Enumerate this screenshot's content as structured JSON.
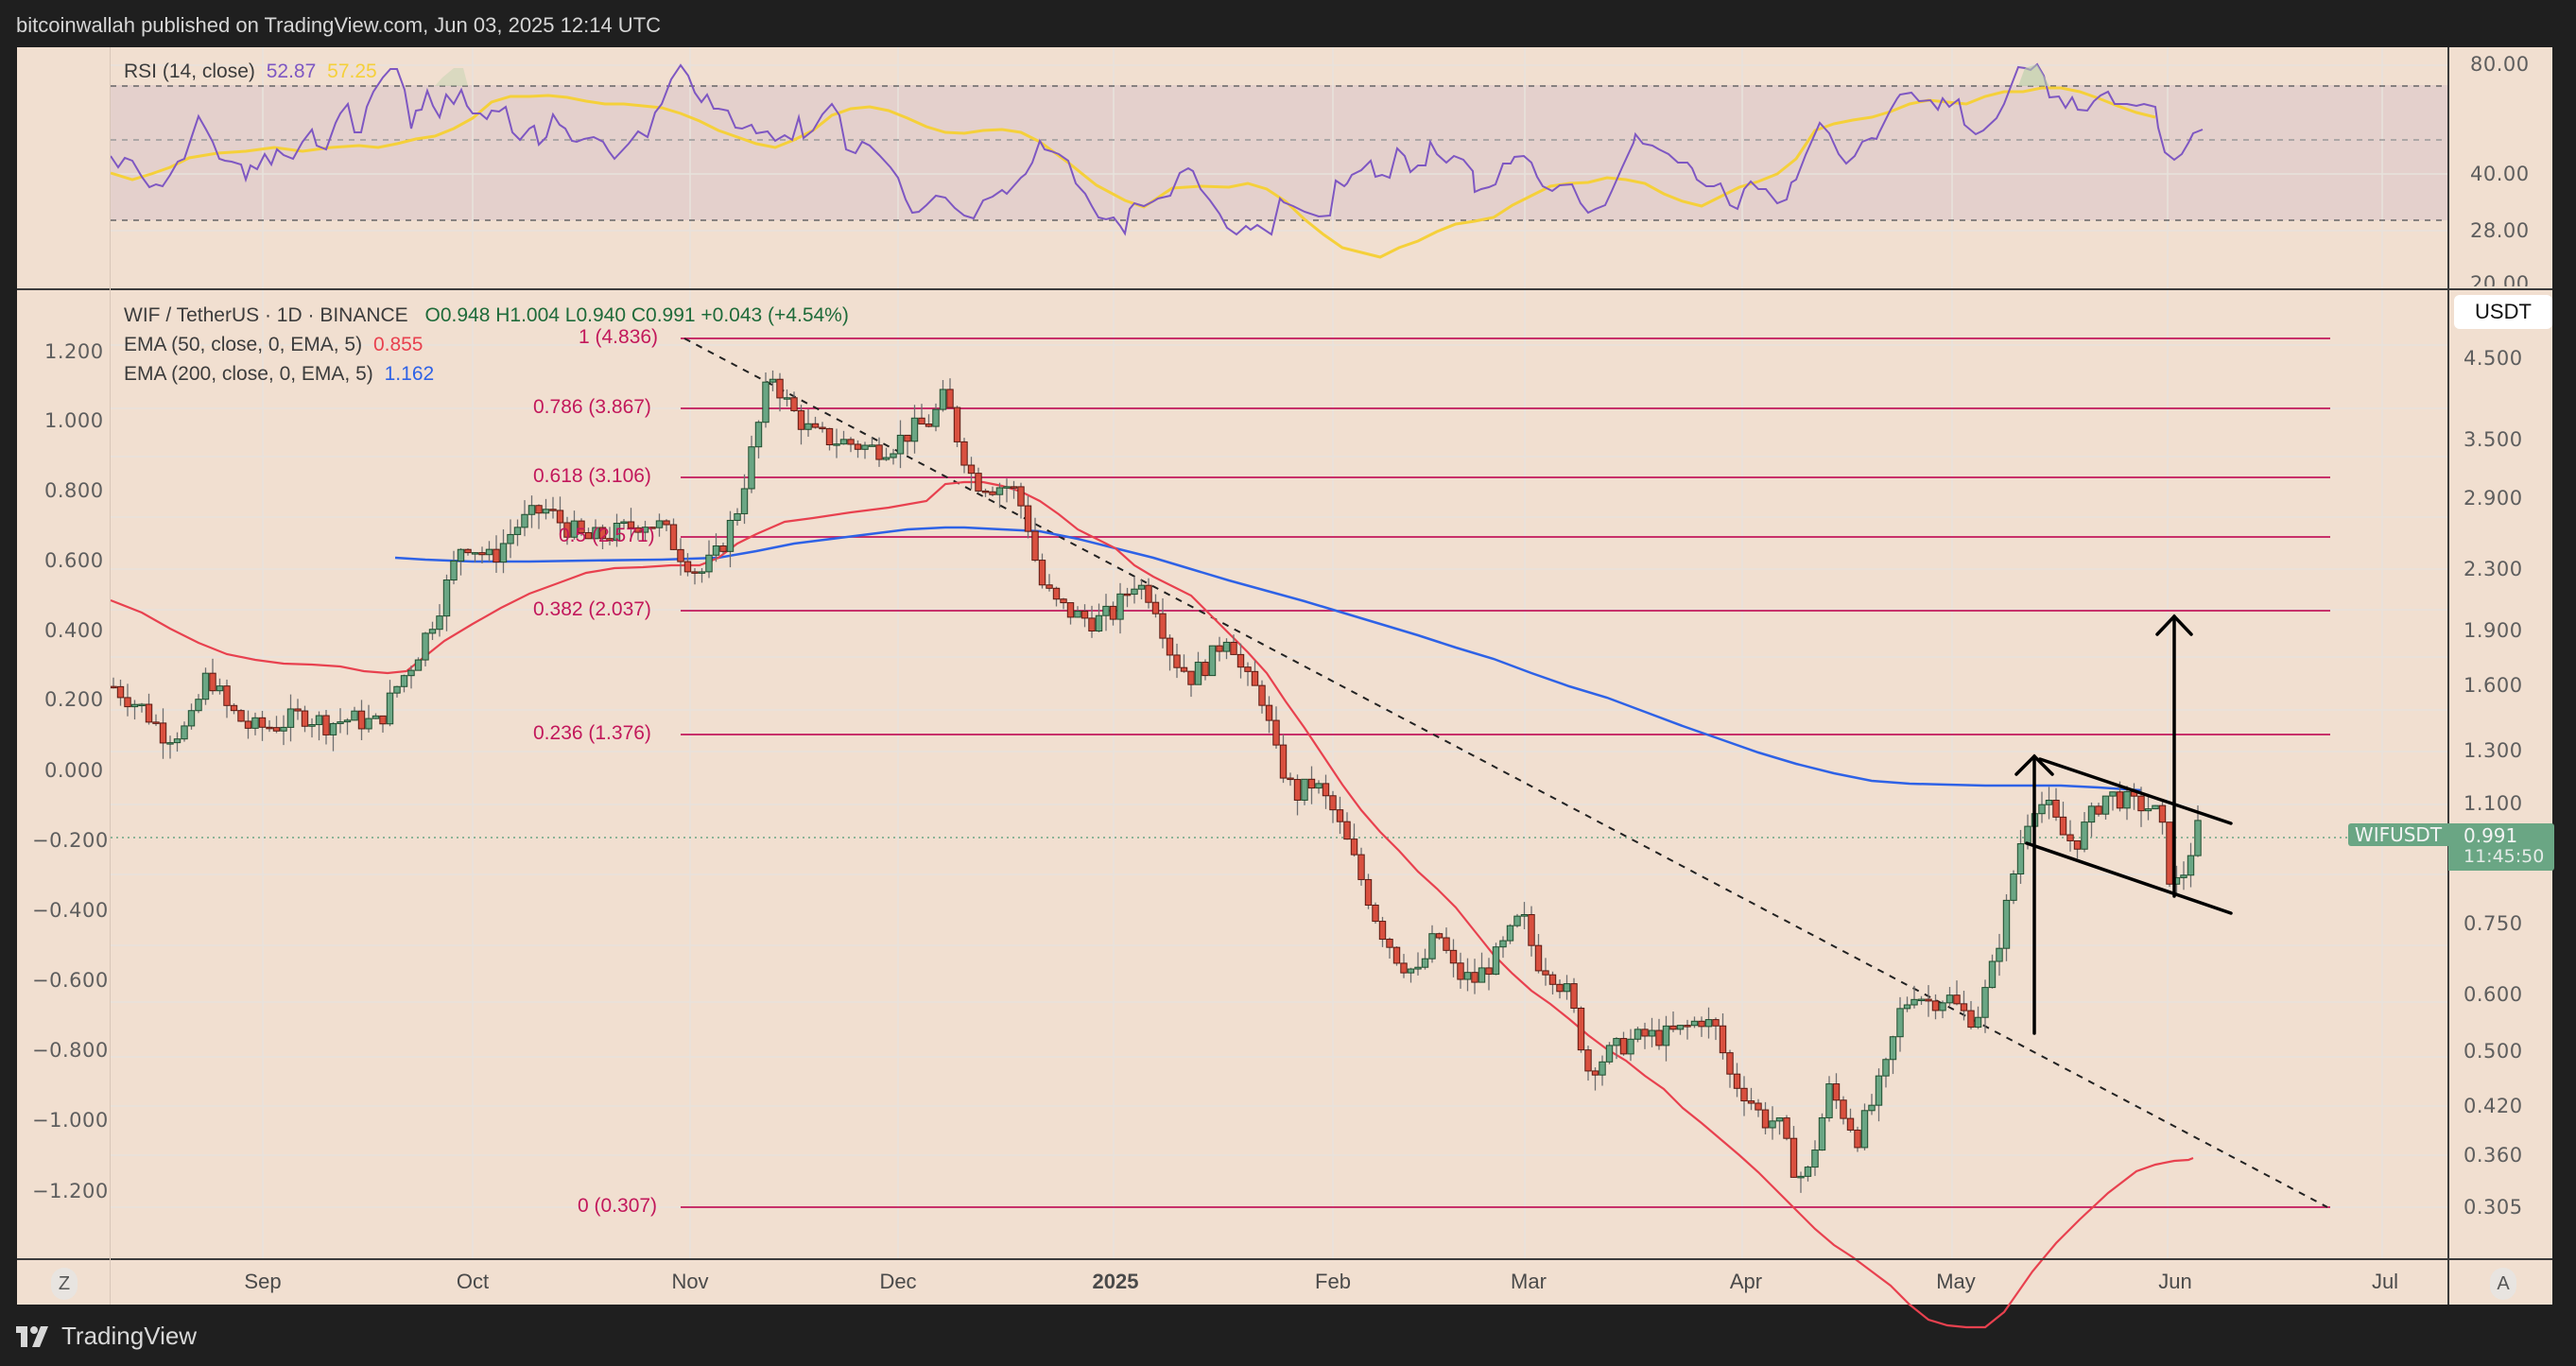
{
  "header": {
    "published_text": "bitcoinwallah published on TradingView.com, Jun 03, 2025 12:14 UTC"
  },
  "rsi_pane": {
    "title": "RSI (14, close)",
    "rsi_value": "52.87",
    "rsi_ma_value": "57.25",
    "rsi_color": "#7e57c2",
    "ma_color": "#f5d03a",
    "axis_labels": [
      "80.00",
      "40.00",
      "28.00",
      "20.00"
    ]
  },
  "main_pane": {
    "symbol_line": "WIF / TetherUS · 1D · BINANCE",
    "ohlc": "O0.948  H1.004  L0.940  C0.991  +0.043 (+4.54%)",
    "ema50_label": "EMA (50, close, 0, EMA, 5)",
    "ema50_value": "0.855",
    "ema200_label": "EMA (200, close, 0, EMA, 5)",
    "ema200_value": "1.162",
    "ema50_color": "#e8414f",
    "ema200_color": "#2e62e6",
    "currency_button": "USDT",
    "right_axis_labels": [
      "4.500",
      "3.500",
      "2.900",
      "2.300",
      "1.900",
      "1.600",
      "1.300",
      "1.100",
      "0.750",
      "0.600",
      "0.500",
      "0.420",
      "0.360",
      "0.305"
    ],
    "left_axis_labels": [
      "1.200",
      "1.000",
      "0.800",
      "0.600",
      "0.400",
      "0.200",
      "0.000",
      "−0.200",
      "−0.400",
      "−0.600",
      "−0.800",
      "−1.000",
      "−1.200"
    ],
    "last_price_tag": {
      "symbol": "WIFUSDT",
      "price": "0.991",
      "countdown": "11:45:50",
      "color": "#6aa684"
    },
    "fib_levels": [
      {
        "label": "1 (4.836)"
      },
      {
        "label": "0.786 (3.867)"
      },
      {
        "label": "0.618 (3.106)"
      },
      {
        "label": "0.5 (2.571)"
      },
      {
        "label": "0.382 (2.037)"
      },
      {
        "label": "0.236 (1.376)"
      },
      {
        "label": "0 (0.307)"
      }
    ],
    "fib_color": "#c2185b"
  },
  "time_axis": {
    "months": [
      {
        "label": "Sep"
      },
      {
        "label": "Oct"
      },
      {
        "label": "Nov"
      },
      {
        "label": "Dec"
      },
      {
        "label": "2025"
      },
      {
        "label": "Feb"
      },
      {
        "label": "Mar"
      },
      {
        "label": "Apr"
      },
      {
        "label": "May"
      },
      {
        "label": "Jun"
      },
      {
        "label": "Jul"
      }
    ],
    "left_button": "Z",
    "right_button": "A"
  },
  "footer": {
    "brand": "TradingView"
  },
  "chart_data": {
    "type": "candlestick",
    "title": "WIF / TetherUS · 1D · BINANCE",
    "xlabel": "",
    "ylabel": "USDT",
    "y_scale": "log",
    "ylim": [
      0.29,
      5.0
    ],
    "x_ticks": [
      "Sep",
      "Oct",
      "Nov",
      "Dec",
      "2025",
      "Feb",
      "Mar",
      "Apr",
      "May",
      "Jun",
      "Jul"
    ],
    "y_ticks_right": [
      4.5,
      3.5,
      2.9,
      2.3,
      1.9,
      1.6,
      1.3,
      1.1,
      0.75,
      0.6,
      0.5,
      0.42,
      0.36,
      0.305
    ],
    "last_bar": {
      "open": 0.948,
      "high": 1.004,
      "low": 0.94,
      "close": 0.991,
      "change": 0.043,
      "change_pct": 4.54
    },
    "series": [
      {
        "name": "EMA 50",
        "last": 0.855,
        "color": "#e8414f"
      },
      {
        "name": "EMA 200",
        "last": 1.162,
        "color": "#2e62e6"
      },
      {
        "name": "RSI 14",
        "last": 52.87,
        "color": "#7e57c2"
      },
      {
        "name": "RSI MA",
        "last": 57.25,
        "color": "#f5d03a"
      }
    ],
    "approx_closes_by_month": {
      "Aug": 1.55,
      "Sep": 1.6,
      "Oct": 2.5,
      "Nov": 3.3,
      "Dec": 2.2,
      "Jan": 1.1,
      "Feb": 0.55,
      "Mar": 0.42,
      "Apr": 0.58,
      "May": 1.05,
      "Jun": 0.991
    },
    "fibonacci_retracement": [
      {
        "ratio": 1,
        "price": 4.836
      },
      {
        "ratio": 0.786,
        "price": 3.867
      },
      {
        "ratio": 0.618,
        "price": 3.106
      },
      {
        "ratio": 0.5,
        "price": 2.571
      },
      {
        "ratio": 0.382,
        "price": 2.037
      },
      {
        "ratio": 0.236,
        "price": 1.376
      },
      {
        "ratio": 0,
        "price": 0.307
      }
    ],
    "annotations": [
      "Descending trendline from Nov high (dashed)",
      "Bull flag channel (May–Jun) with flagpole arrow",
      "Target arrow projecting to ~2.0 (0.382 fib)"
    ],
    "rsi": {
      "ylim": [
        20,
        85
      ],
      "levels": [
        70,
        50,
        30
      ],
      "ticks": [
        80,
        40,
        28,
        20
      ]
    },
    "grid": true,
    "legend_position": "top-left"
  }
}
